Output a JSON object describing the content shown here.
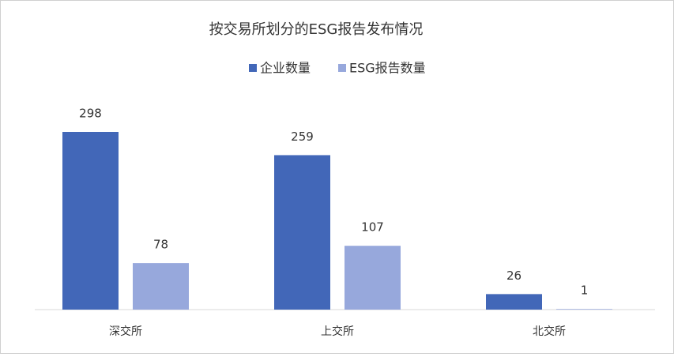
{
  "chart_data": {
    "type": "bar",
    "title": "按交易所划分的ESG报告发布情况",
    "categories": [
      "深交所",
      "上交所",
      "北交所"
    ],
    "series": [
      {
        "name": "企业数量",
        "color": "#4267b8",
        "values": [
          298,
          259,
          26
        ]
      },
      {
        "name": "ESG报告数量",
        "color": "#97a8dc",
        "values": [
          78,
          107,
          1
        ]
      }
    ],
    "legend": "top"
  }
}
